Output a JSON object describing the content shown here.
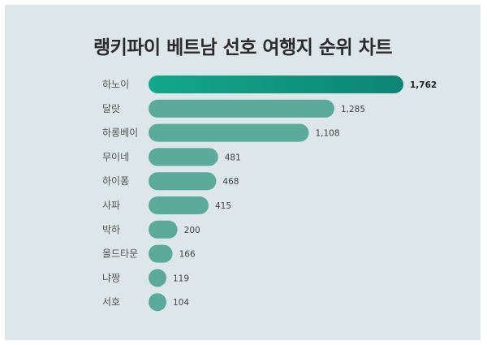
{
  "chart_data": {
    "type": "bar",
    "orientation": "horizontal",
    "title": "랭키파이 베트남 선호 여행지 순위 차트",
    "categories": [
      "하노이",
      "달랏",
      "하롱베이",
      "무이네",
      "하이퐁",
      "사파",
      "박하",
      "올드타운",
      "냐짱",
      "서호"
    ],
    "values": [
      1762,
      1285,
      1108,
      481,
      468,
      415,
      200,
      166,
      119,
      104
    ],
    "value_labels": [
      "1,762",
      "1,285",
      "1,108",
      "481",
      "468",
      "415",
      "200",
      "166",
      "119",
      "104"
    ],
    "xlabel": "",
    "ylabel": "",
    "grid": false,
    "legend": "none",
    "colors": {
      "bar": "#5aab9b",
      "top_bar_start": "#12a88a",
      "top_bar_end": "#0b8577",
      "background": "#dde6e8"
    }
  }
}
